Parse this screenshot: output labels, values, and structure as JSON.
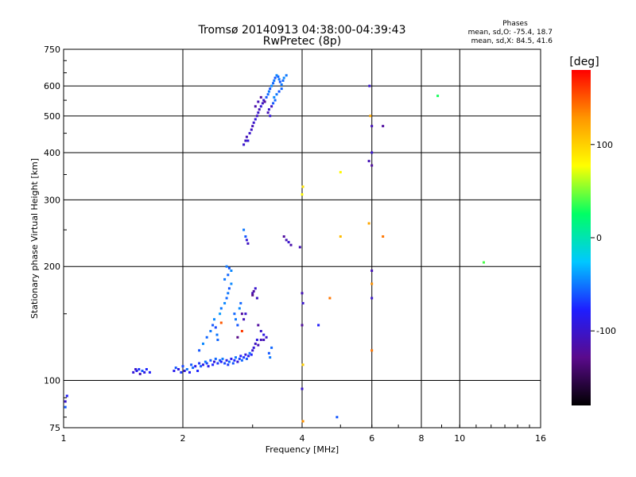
{
  "chart_data": {
    "type": "scatter",
    "title": "Tromsø 20140913 04:38:00-04:39:43",
    "subtitle": "RwPretec (8p)",
    "xlabel": "Frequency [MHz]",
    "ylabel": "Stationary phase Virtual Height [km]",
    "x_scale": "log",
    "y_scale": "log",
    "xlim": [
      1,
      16
    ],
    "ylim": [
      75,
      750
    ],
    "x_ticks": [
      1,
      2,
      4,
      6,
      8,
      10,
      16
    ],
    "x_tick_labels": [
      "1",
      "2",
      "4",
      "6",
      "8",
      "10",
      "16"
    ],
    "y_ticks": [
      75,
      100,
      200,
      300,
      400,
      500,
      600,
      750
    ],
    "y_tick_labels": [
      "75",
      "100",
      "200",
      "300",
      "400",
      "500",
      "600",
      "750"
    ],
    "grid": true,
    "stats": {
      "heading": "Phases",
      "line1": "mean, sd,O: -75.4, 18.7",
      "line2": "mean, sd,X:  84.5, 41.6"
    },
    "colorbar": {
      "label": "[deg]",
      "range": [
        -180,
        180
      ],
      "ticks": [
        100,
        0,
        -100
      ],
      "tick_labels": [
        "100",
        "0",
        "-100"
      ],
      "colors": [
        "#000000",
        "#5a0a8c",
        "#1e1eff",
        "#00c8ff",
        "#00ff64",
        "#ffff00",
        "#ff9600",
        "#ff0000"
      ]
    },
    "series": [
      {
        "points": [
          [
            1.01,
            88,
            -100
          ],
          [
            1.02,
            91,
            -80
          ],
          [
            1.01,
            85,
            -60
          ],
          [
            1.5,
            105,
            -95
          ],
          [
            1.53,
            106,
            -85
          ],
          [
            1.55,
            107,
            -70
          ],
          [
            1.58,
            106,
            -60
          ],
          [
            1.6,
            105,
            -90
          ],
          [
            1.62,
            107,
            -75
          ],
          [
            1.65,
            105,
            -80
          ],
          [
            1.52,
            107,
            -100
          ],
          [
            1.56,
            104,
            -110
          ],
          [
            1.9,
            106,
            -85
          ],
          [
            1.92,
            108,
            -60
          ],
          [
            1.95,
            107,
            -90
          ],
          [
            1.98,
            105,
            -70
          ],
          [
            2.0,
            109,
            -65
          ],
          [
            2.02,
            106,
            -95
          ],
          [
            2.05,
            107,
            -50
          ],
          [
            2.08,
            105,
            -80
          ],
          [
            2.1,
            110,
            -60
          ],
          [
            2.12,
            108,
            -55
          ],
          [
            2.15,
            109,
            -85
          ],
          [
            2.18,
            106,
            -75
          ],
          [
            2.2,
            111,
            -70
          ],
          [
            2.22,
            109,
            -60
          ],
          [
            2.25,
            110,
            -90
          ],
          [
            2.28,
            112,
            -50
          ],
          [
            2.3,
            111,
            -65
          ],
          [
            2.32,
            109,
            -85
          ],
          [
            2.35,
            113,
            -60
          ],
          [
            2.38,
            110,
            -75
          ],
          [
            2.4,
            112,
            -95
          ],
          [
            2.42,
            114,
            -55
          ],
          [
            2.45,
            111,
            -70
          ],
          [
            2.48,
            113,
            -60
          ],
          [
            2.5,
            112,
            -80
          ],
          [
            2.52,
            114,
            -50
          ],
          [
            2.55,
            111,
            -65
          ],
          [
            2.58,
            113,
            -90
          ],
          [
            2.6,
            110,
            -70
          ],
          [
            2.62,
            112,
            -55
          ],
          [
            2.65,
            114,
            -85
          ],
          [
            2.68,
            111,
            -60
          ],
          [
            2.7,
            113,
            -75
          ],
          [
            2.72,
            115,
            -50
          ],
          [
            2.75,
            112,
            -95
          ],
          [
            2.78,
            114,
            -65
          ],
          [
            2.8,
            116,
            -80
          ],
          [
            2.82,
            113,
            -55
          ],
          [
            2.85,
            115,
            -70
          ],
          [
            2.88,
            117,
            -90
          ],
          [
            2.9,
            114,
            -60
          ],
          [
            2.93,
            116,
            -85
          ],
          [
            2.95,
            118,
            -50
          ],
          [
            2.98,
            117,
            -75
          ],
          [
            3.0,
            120,
            -100
          ],
          [
            3.02,
            122,
            -95
          ],
          [
            3.05,
            125,
            -105
          ],
          [
            3.08,
            128,
            -90
          ],
          [
            3.1,
            124,
            -110
          ],
          [
            2.2,
            120,
            -60
          ],
          [
            2.25,
            125,
            -45
          ],
          [
            2.3,
            130,
            -55
          ],
          [
            2.35,
            135,
            -50
          ],
          [
            2.38,
            140,
            -60
          ],
          [
            2.4,
            145,
            -45
          ],
          [
            2.42,
            138,
            -65
          ],
          [
            2.44,
            132,
            -50
          ],
          [
            2.45,
            128,
            -55
          ],
          [
            2.48,
            150,
            -40
          ],
          [
            2.5,
            155,
            -50
          ],
          [
            2.5,
            142,
            150
          ],
          [
            2.55,
            160,
            -45
          ],
          [
            2.58,
            165,
            -55
          ],
          [
            2.6,
            170,
            -50
          ],
          [
            2.62,
            175,
            -60
          ],
          [
            2.65,
            180,
            -45
          ],
          [
            2.55,
            185,
            -50
          ],
          [
            2.6,
            190,
            -55
          ],
          [
            2.65,
            195,
            -45
          ],
          [
            2.58,
            200,
            -50
          ],
          [
            2.62,
            198,
            -60
          ],
          [
            2.7,
            150,
            -55
          ],
          [
            2.72,
            145,
            -50
          ],
          [
            2.75,
            140,
            -60
          ],
          [
            2.78,
            155,
            -45
          ],
          [
            2.8,
            160,
            -55
          ],
          [
            2.82,
            150,
            -120
          ],
          [
            2.85,
            145,
            -110
          ],
          [
            2.88,
            150,
            -100
          ],
          [
            2.82,
            135,
            160
          ],
          [
            2.75,
            130,
            -130
          ],
          [
            2.85,
            250,
            -50
          ],
          [
            2.88,
            240,
            -60
          ],
          [
            2.9,
            235,
            -95
          ],
          [
            2.92,
            230,
            -105
          ],
          [
            3.0,
            170,
            -110
          ],
          [
            3.02,
            172,
            -120
          ],
          [
            3.05,
            175,
            -100
          ],
          [
            3.0,
            168,
            -130
          ],
          [
            3.08,
            165,
            -105
          ],
          [
            3.15,
            128,
            -110
          ],
          [
            3.2,
            132,
            -90
          ],
          [
            3.25,
            130,
            -100
          ],
          [
            3.2,
            128,
            -110
          ],
          [
            3.15,
            135,
            -100
          ],
          [
            3.1,
            140,
            -120
          ],
          [
            3.3,
            118,
            -60
          ],
          [
            3.35,
            122,
            -55
          ],
          [
            3.32,
            115,
            -50
          ],
          [
            3.6,
            240,
            -120
          ],
          [
            3.65,
            235,
            -110
          ],
          [
            3.7,
            232,
            -100
          ],
          [
            3.75,
            228,
            -115
          ],
          [
            2.85,
            420,
            -100
          ],
          [
            2.88,
            430,
            -105
          ],
          [
            2.9,
            440,
            -110
          ],
          [
            2.92,
            430,
            -95
          ],
          [
            2.95,
            450,
            -100
          ],
          [
            2.98,
            460,
            -105
          ],
          [
            3.0,
            470,
            -110
          ],
          [
            3.02,
            480,
            -100
          ],
          [
            3.05,
            490,
            -95
          ],
          [
            3.08,
            500,
            -105
          ],
          [
            3.1,
            510,
            -100
          ],
          [
            3.12,
            520,
            -110
          ],
          [
            3.15,
            530,
            -95
          ],
          [
            3.18,
            540,
            -105
          ],
          [
            3.2,
            550,
            -100
          ],
          [
            3.22,
            545,
            -120
          ],
          [
            3.05,
            530,
            -115
          ],
          [
            3.1,
            545,
            -110
          ],
          [
            3.15,
            560,
            -120
          ],
          [
            3.25,
            560,
            -60
          ],
          [
            3.28,
            570,
            -55
          ],
          [
            3.3,
            580,
            -50
          ],
          [
            3.32,
            590,
            -60
          ],
          [
            3.35,
            600,
            -45
          ],
          [
            3.38,
            610,
            -55
          ],
          [
            3.4,
            620,
            -50
          ],
          [
            3.42,
            630,
            -60
          ],
          [
            3.45,
            640,
            -45
          ],
          [
            3.48,
            635,
            -55
          ],
          [
            3.5,
            625,
            -50
          ],
          [
            3.52,
            615,
            -60
          ],
          [
            3.55,
            605,
            -50
          ],
          [
            3.58,
            620,
            -55
          ],
          [
            3.6,
            630,
            -45
          ],
          [
            3.65,
            640,
            -50
          ],
          [
            3.5,
            580,
            -60
          ],
          [
            3.55,
            590,
            -55
          ],
          [
            3.45,
            570,
            -50
          ],
          [
            3.4,
            560,
            -45
          ],
          [
            3.42,
            550,
            -55
          ],
          [
            3.38,
            540,
            -60
          ],
          [
            3.3,
            520,
            -100
          ],
          [
            3.28,
            510,
            -110
          ],
          [
            3.35,
            530,
            -105
          ],
          [
            3.32,
            500,
            -95
          ],
          [
            4.0,
            310,
            80
          ],
          [
            4.02,
            325,
            90
          ],
          [
            4.0,
            170,
            -110
          ],
          [
            4.02,
            160,
            -100
          ],
          [
            4.0,
            140,
            -120
          ],
          [
            4.02,
            110,
            100
          ],
          [
            4.0,
            95,
            -100
          ],
          [
            4.02,
            78,
            130
          ],
          [
            3.95,
            225,
            -110
          ],
          [
            4.4,
            140,
            -80
          ],
          [
            4.7,
            165,
            140
          ],
          [
            4.9,
            80,
            -60
          ],
          [
            5.0,
            355,
            80
          ],
          [
            5.0,
            240,
            110
          ],
          [
            5.9,
            260,
            120
          ],
          [
            5.9,
            380,
            -110
          ],
          [
            5.92,
            600,
            -100
          ],
          [
            5.95,
            500,
            120
          ],
          [
            6.0,
            470,
            -110
          ],
          [
            6.0,
            400,
            -100
          ],
          [
            6.0,
            370,
            -120
          ],
          [
            6.0,
            195,
            -110
          ],
          [
            6.0,
            180,
            130
          ],
          [
            6.0,
            165,
            -100
          ],
          [
            6.0,
            120,
            140
          ],
          [
            6.4,
            470,
            -120
          ],
          [
            6.4,
            240,
            140
          ],
          [
            8.8,
            565,
            30
          ],
          [
            11.5,
            205,
            40
          ]
        ]
      }
    ]
  }
}
